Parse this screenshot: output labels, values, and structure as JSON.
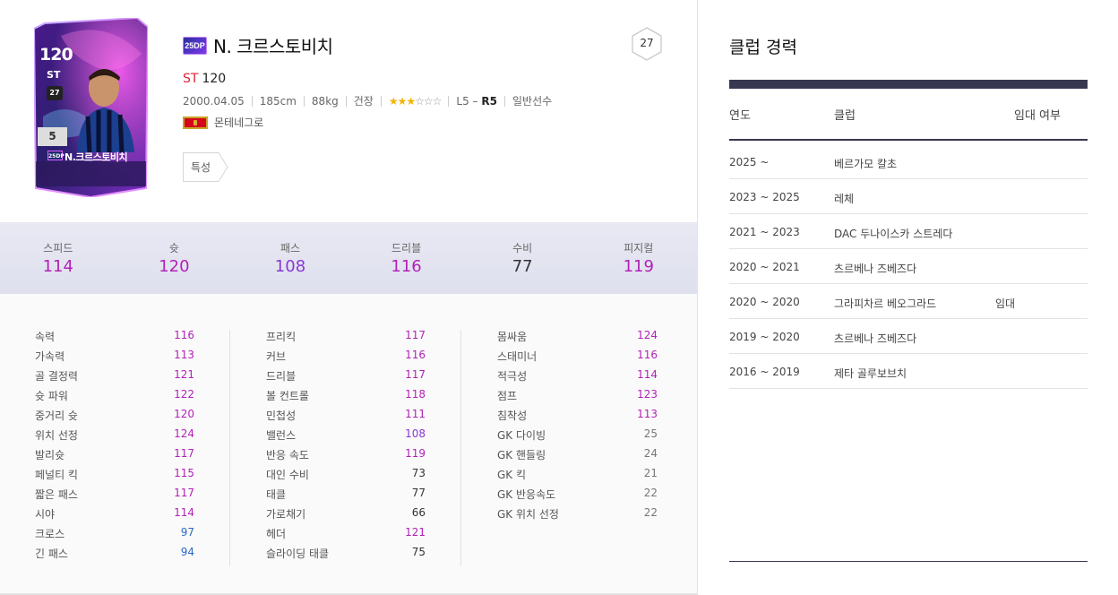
{
  "player": {
    "season_badge": "25DP",
    "name": "N. 크르스토비치",
    "position": "ST",
    "ovr": "120",
    "birth": "2000.04.05",
    "height": "185cm",
    "weight": "88kg",
    "health_label": "건장",
    "stars_filled": "★★★",
    "stars_empty": "☆☆☆",
    "level_prefix": "L5 –",
    "level_rank": "R5",
    "player_type": "일반선수",
    "nation": "몬테네그로",
    "trait_label": "특성",
    "badge_number": "27",
    "card": {
      "ovr": "120",
      "pos": "ST",
      "grade": "5",
      "badge": "27",
      "name": "N.크르스토비치",
      "season": "25DP"
    }
  },
  "summary": [
    {
      "label": "스피드",
      "value": "114",
      "color": "#b221b8"
    },
    {
      "label": "슛",
      "value": "120",
      "color": "#b221b8"
    },
    {
      "label": "패스",
      "value": "108",
      "color": "#8a38d4"
    },
    {
      "label": "드리블",
      "value": "116",
      "color": "#b221b8"
    },
    {
      "label": "수비",
      "value": "77",
      "color": "#333333"
    },
    {
      "label": "피지컬",
      "value": "119",
      "color": "#b221b8"
    }
  ],
  "stats": {
    "col1": [
      {
        "label": "속력",
        "value": "116",
        "cls": "c-purple"
      },
      {
        "label": "가속력",
        "value": "113",
        "cls": "c-purple"
      },
      {
        "label": "골 결정력",
        "value": "121",
        "cls": "c-purple"
      },
      {
        "label": "슛 파워",
        "value": "122",
        "cls": "c-purple"
      },
      {
        "label": "중거리 슛",
        "value": "120",
        "cls": "c-purple"
      },
      {
        "label": "위치 선정",
        "value": "124",
        "cls": "c-purple"
      },
      {
        "label": "발리슛",
        "value": "117",
        "cls": "c-purple"
      },
      {
        "label": "페널티 킥",
        "value": "115",
        "cls": "c-purple"
      },
      {
        "label": "짧은 패스",
        "value": "117",
        "cls": "c-purple"
      },
      {
        "label": "시야",
        "value": "114",
        "cls": "c-purple"
      },
      {
        "label": "크로스",
        "value": "97",
        "cls": "c-blue"
      },
      {
        "label": "긴 패스",
        "value": "94",
        "cls": "c-blue"
      }
    ],
    "col2": [
      {
        "label": "프리킥",
        "value": "117",
        "cls": "c-purple"
      },
      {
        "label": "커브",
        "value": "116",
        "cls": "c-purple"
      },
      {
        "label": "드리블",
        "value": "117",
        "cls": "c-purple"
      },
      {
        "label": "볼 컨트롤",
        "value": "118",
        "cls": "c-purple"
      },
      {
        "label": "민첩성",
        "value": "111",
        "cls": "c-purple"
      },
      {
        "label": "밸런스",
        "value": "108",
        "cls": "c-violet"
      },
      {
        "label": "반응 속도",
        "value": "119",
        "cls": "c-purple"
      },
      {
        "label": "대인 수비",
        "value": "73",
        "cls": "c-dark"
      },
      {
        "label": "태클",
        "value": "77",
        "cls": "c-dark"
      },
      {
        "label": "가로채기",
        "value": "66",
        "cls": "c-dark"
      },
      {
        "label": "헤더",
        "value": "121",
        "cls": "c-purple"
      },
      {
        "label": "슬라이딩 태클",
        "value": "75",
        "cls": "c-dark"
      }
    ],
    "col3": [
      {
        "label": "몸싸움",
        "value": "124",
        "cls": "c-purple"
      },
      {
        "label": "스태미너",
        "value": "116",
        "cls": "c-purple"
      },
      {
        "label": "적극성",
        "value": "114",
        "cls": "c-purple"
      },
      {
        "label": "점프",
        "value": "123",
        "cls": "c-purple"
      },
      {
        "label": "침착성",
        "value": "113",
        "cls": "c-purple"
      },
      {
        "label": "GK 다이빙",
        "value": "25",
        "cls": "c-gray"
      },
      {
        "label": "GK 핸들링",
        "value": "24",
        "cls": "c-gray"
      },
      {
        "label": "GK 킥",
        "value": "21",
        "cls": "c-gray"
      },
      {
        "label": "GK 반응속도",
        "value": "22",
        "cls": "c-gray"
      },
      {
        "label": "GK 위치 선정",
        "value": "22",
        "cls": "c-gray"
      }
    ]
  },
  "club_history": {
    "title": "클럽 경력",
    "headers": {
      "year": "연도",
      "club": "클럽",
      "loan": "임대 여부"
    },
    "rows": [
      {
        "year": "2025 ~",
        "club": "베르가모 칼초",
        "loan": ""
      },
      {
        "year": "2023 ~ 2025",
        "club": "레체",
        "loan": ""
      },
      {
        "year": "2021 ~ 2023",
        "club": "DAC 두나이스카 스트레다",
        "loan": ""
      },
      {
        "year": "2020 ~ 2021",
        "club": "츠르베나 즈베즈다",
        "loan": ""
      },
      {
        "year": "2020 ~ 2020",
        "club": "그라피차르 베오그라드",
        "loan": "임대"
      },
      {
        "year": "2019 ~ 2020",
        "club": "츠르베나 즈베즈다",
        "loan": ""
      },
      {
        "year": "2016 ~ 2019",
        "club": "제타 골루보브치",
        "loan": ""
      }
    ]
  }
}
